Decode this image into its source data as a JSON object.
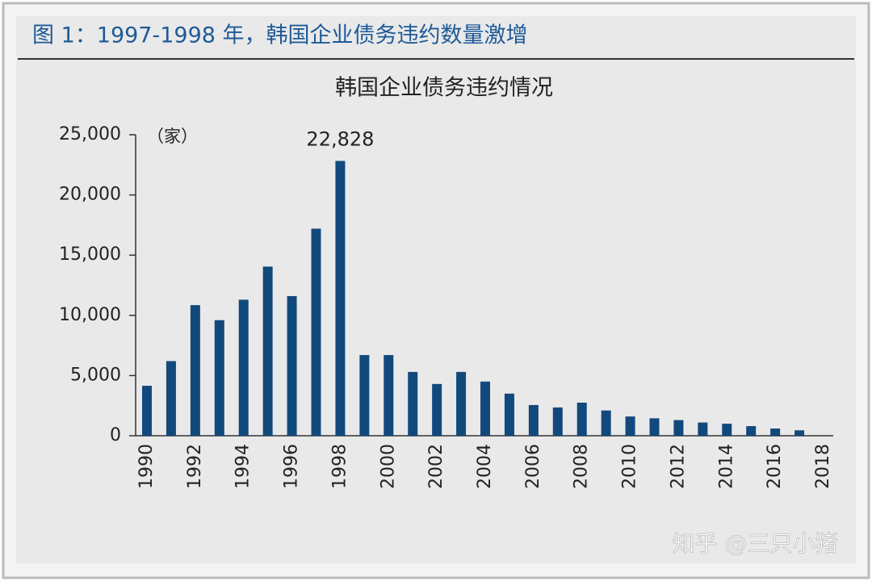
{
  "figure_title": "图 1：1997-1998 年，韩国企业债务违约数量激增",
  "watermark": "知乎 @三只小猪",
  "chart_data": {
    "type": "bar",
    "title": "韩国企业债务违约情况",
    "unit_label": "（家）",
    "categories": [
      "1990",
      null,
      "1992",
      null,
      "1994",
      null,
      "1996",
      null,
      "1998",
      null,
      "2000",
      null,
      "2002",
      null,
      "2004",
      null,
      "2006",
      null,
      "2008",
      null,
      "2010",
      null,
      "2012",
      null,
      "2014",
      null,
      "2016",
      null,
      "2018"
    ],
    "values": [
      4150,
      6200,
      10850,
      9600,
      11300,
      14050,
      11600,
      17200,
      22828,
      6700,
      6700,
      5300,
      4300,
      5300,
      4500,
      3500,
      2550,
      2350,
      2750,
      2100,
      1600,
      1450,
      1300,
      1100,
      1000,
      800,
      600,
      450,
      null
    ],
    "value_labels": [
      null,
      null,
      null,
      null,
      null,
      null,
      null,
      null,
      "22,828",
      null,
      null,
      null,
      null,
      null,
      null,
      null,
      null,
      null,
      null,
      null,
      null,
      null,
      null,
      null,
      null,
      null,
      null,
      null,
      null
    ],
    "color": "#12497c",
    "ylim": [
      0,
      25000
    ],
    "yticks": [
      0,
      {
        "value": 5000,
        "label": "5,000"
      },
      {
        "value": 10000,
        "label": "10,000"
      },
      {
        "value": 15000,
        "label": "15,000"
      },
      {
        "value": 20000,
        "label": "20,000"
      },
      {
        "value": 25000,
        "label": "25,000"
      }
    ],
    "grid": false
  }
}
